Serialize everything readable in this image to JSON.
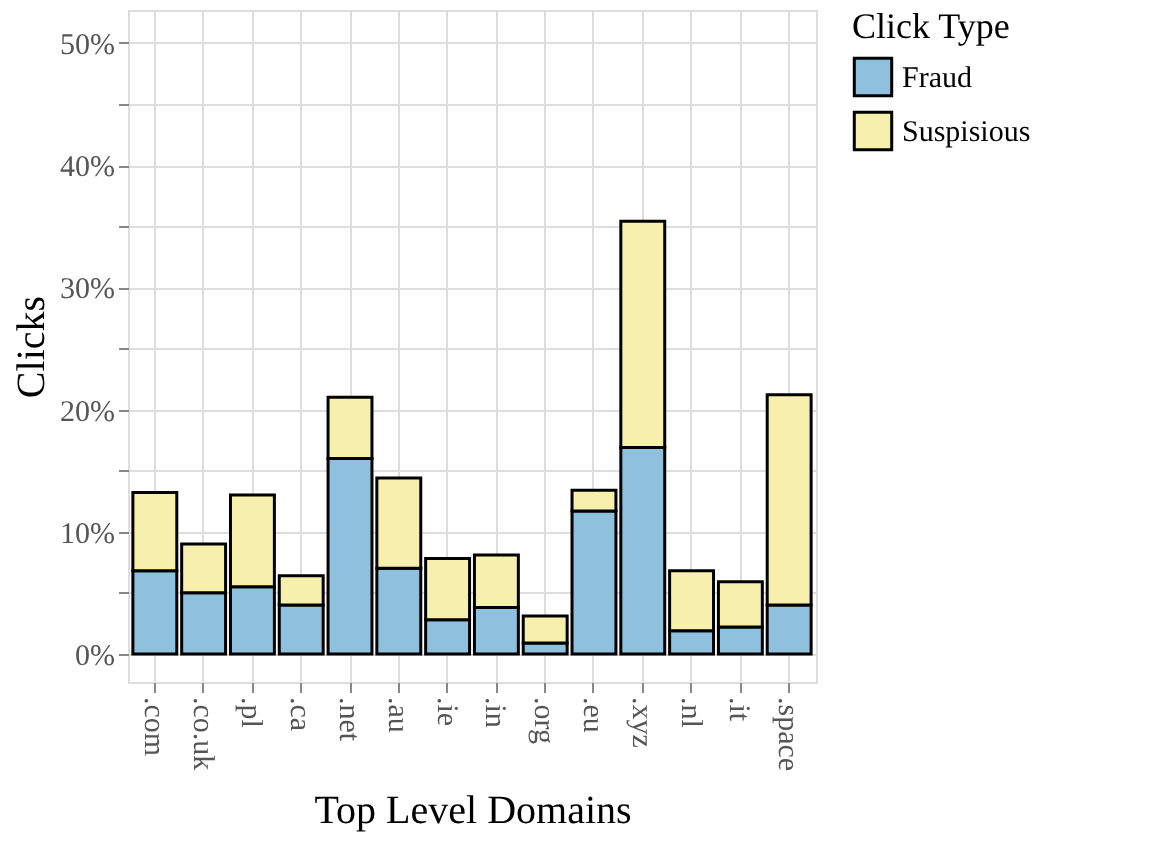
{
  "chart_data": {
    "type": "bar",
    "stacked": true,
    "xlabel": "Top Level Domains",
    "ylabel": "Clicks",
    "legend_title": "Click Type",
    "legend": "right",
    "grid": true,
    "categories": [
      ".com",
      ".co.uk",
      ".pl",
      ".ca",
      ".net",
      ".au",
      ".ie",
      ".in",
      ".org",
      ".eu",
      ".xyz",
      ".nl",
      ".it",
      ".space"
    ],
    "series": [
      {
        "name": "Fraud",
        "color": "#8fc1de",
        "values": [
          6.8,
          5.0,
          5.5,
          4.0,
          16.0,
          7.0,
          2.8,
          3.8,
          0.9,
          11.7,
          16.9,
          1.9,
          2.2,
          4.0
        ]
      },
      {
        "name": "Suspisious",
        "color": "#f7f0ad",
        "values": [
          6.4,
          4.0,
          7.5,
          2.4,
          5.0,
          7.4,
          5.0,
          4.3,
          2.2,
          1.7,
          18.5,
          4.9,
          3.7,
          17.2
        ]
      }
    ],
    "ylim": [
      -2.3,
      52.7
    ],
    "yticks": [
      {
        "value": 0,
        "label": "0%"
      },
      {
        "value": 5,
        "label": null
      },
      {
        "value": 10,
        "label": "10%"
      },
      {
        "value": 15,
        "label": null
      },
      {
        "value": 20,
        "label": "20%"
      },
      {
        "value": 25,
        "label": null
      },
      {
        "value": 30,
        "label": "30%"
      },
      {
        "value": 35,
        "label": null
      },
      {
        "value": 40,
        "label": "40%"
      },
      {
        "value": 45,
        "label": null
      },
      {
        "value": 50,
        "label": "50%"
      }
    ]
  }
}
